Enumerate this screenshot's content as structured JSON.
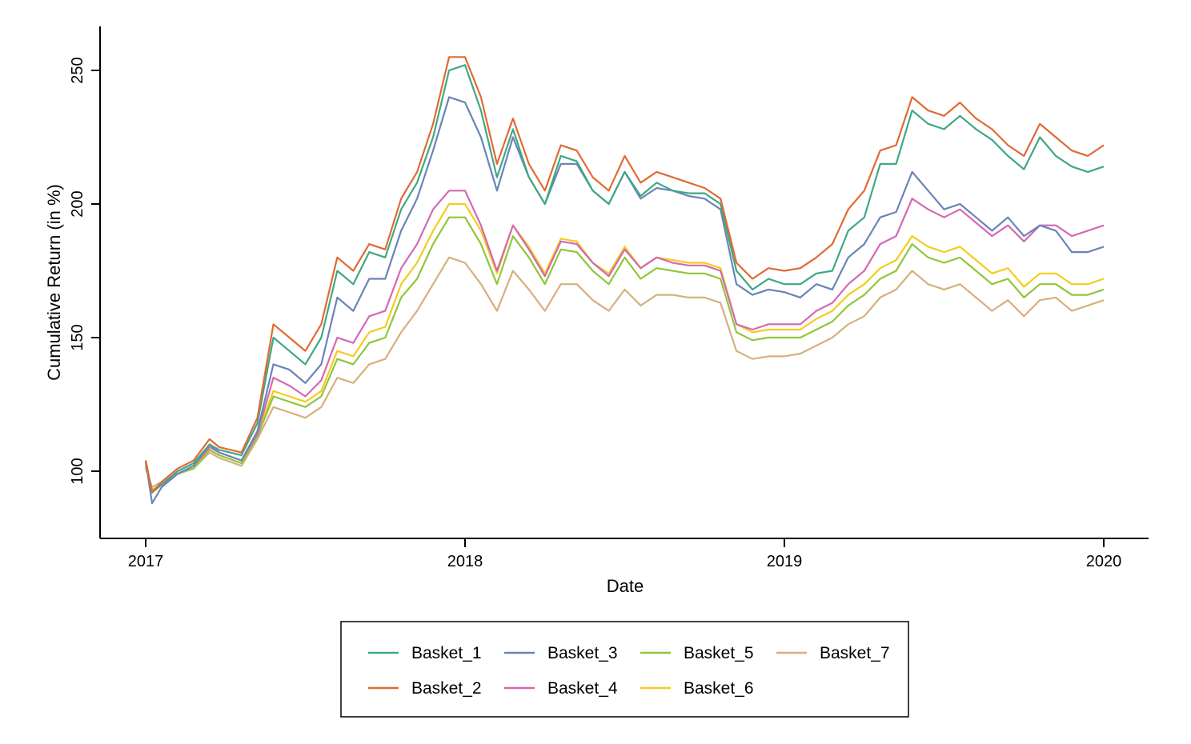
{
  "chart_data": {
    "type": "line",
    "title": "",
    "xlabel": "Date",
    "ylabel": "Cumulative Return (in %)",
    "xlim": [
      2017.0,
      2020.15
    ],
    "ylim": [
      75,
      265
    ],
    "xticks": [
      {
        "value": 2017,
        "label": "2017"
      },
      {
        "value": 2018,
        "label": "2018"
      },
      {
        "value": 2019,
        "label": "2019"
      },
      {
        "value": 2020,
        "label": "2020"
      }
    ],
    "yticks": [
      {
        "value": 100,
        "label": "100"
      },
      {
        "value": 150,
        "label": "150"
      },
      {
        "value": 200,
        "label": "200"
      },
      {
        "value": 250,
        "label": "250"
      }
    ],
    "legend": {
      "position": "bottom",
      "columns": 4,
      "boxed": true
    },
    "x": [
      2017.0,
      2017.02,
      2017.05,
      2017.1,
      2017.15,
      2017.2,
      2017.23,
      2017.3,
      2017.35,
      2017.4,
      2017.45,
      2017.5,
      2017.55,
      2017.6,
      2017.65,
      2017.7,
      2017.75,
      2017.8,
      2017.85,
      2017.9,
      2017.95,
      2018.0,
      2018.05,
      2018.1,
      2018.15,
      2018.2,
      2018.25,
      2018.3,
      2018.35,
      2018.4,
      2018.45,
      2018.5,
      2018.55,
      2018.6,
      2018.65,
      2018.7,
      2018.75,
      2018.8,
      2018.85,
      2018.9,
      2018.95,
      2019.0,
      2019.05,
      2019.1,
      2019.15,
      2019.2,
      2019.25,
      2019.3,
      2019.35,
      2019.4,
      2019.45,
      2019.5,
      2019.55,
      2019.6,
      2019.65,
      2019.7,
      2019.75,
      2019.8,
      2019.85,
      2019.9,
      2019.95,
      2020.0
    ],
    "series": [
      {
        "name": "Basket_1",
        "color": "#3fa883",
        "values": [
          104,
          92,
          95,
          100,
          103,
          110,
          108,
          106,
          118,
          150,
          145,
          140,
          150,
          175,
          170,
          182,
          180,
          198,
          208,
          225,
          250,
          252,
          235,
          210,
          228,
          210,
          200,
          218,
          216,
          205,
          200,
          212,
          203,
          208,
          205,
          204,
          204,
          200,
          175,
          168,
          172,
          170,
          170,
          174,
          175,
          190,
          195,
          215,
          215,
          235,
          230,
          228,
          233,
          228,
          224,
          218,
          213,
          225,
          218,
          214,
          212,
          214
        ]
      },
      {
        "name": "Basket_2",
        "color": "#e06a33",
        "values": [
          104,
          92,
          96,
          101,
          104,
          112,
          109,
          107,
          120,
          155,
          150,
          145,
          155,
          180,
          175,
          185,
          183,
          202,
          212,
          230,
          255,
          255,
          240,
          215,
          232,
          215,
          205,
          222,
          220,
          210,
          205,
          218,
          208,
          212,
          210,
          208,
          206,
          202,
          178,
          172,
          176,
          175,
          176,
          180,
          185,
          198,
          205,
          220,
          222,
          240,
          235,
          233,
          238,
          232,
          228,
          222,
          218,
          230,
          225,
          220,
          218,
          222
        ]
      },
      {
        "name": "Basket_3",
        "color": "#6a84b8",
        "values": [
          104,
          88,
          94,
          99,
          102,
          110,
          107,
          104,
          115,
          140,
          138,
          133,
          140,
          165,
          160,
          172,
          172,
          190,
          202,
          220,
          240,
          238,
          225,
          205,
          225,
          210,
          200,
          215,
          215,
          205,
          200,
          212,
          202,
          206,
          205,
          203,
          202,
          198,
          170,
          166,
          168,
          167,
          165,
          170,
          168,
          180,
          185,
          195,
          197,
          212,
          205,
          198,
          200,
          195,
          190,
          195,
          188,
          192,
          190,
          182,
          182,
          184
        ]
      },
      {
        "name": "Basket_4",
        "color": "#d468b2",
        "values": [
          103,
          92,
          95,
          99,
          102,
          109,
          107,
          104,
          114,
          135,
          132,
          128,
          134,
          150,
          148,
          158,
          160,
          176,
          185,
          198,
          205,
          205,
          192,
          175,
          192,
          183,
          173,
          186,
          185,
          178,
          173,
          183,
          176,
          180,
          178,
          177,
          177,
          175,
          155,
          153,
          155,
          155,
          155,
          160,
          163,
          170,
          175,
          185,
          188,
          202,
          198,
          195,
          198,
          193,
          188,
          192,
          186,
          192,
          192,
          188,
          190,
          192
        ]
      },
      {
        "name": "Basket_5",
        "color": "#8fc63b",
        "values": [
          102,
          93,
          95,
          99,
          101,
          108,
          106,
          103,
          113,
          128,
          126,
          124,
          128,
          142,
          140,
          148,
          150,
          165,
          172,
          185,
          195,
          195,
          185,
          170,
          188,
          180,
          170,
          183,
          182,
          175,
          170,
          180,
          172,
          176,
          175,
          174,
          174,
          172,
          152,
          149,
          150,
          150,
          150,
          153,
          156,
          162,
          166,
          172,
          175,
          185,
          180,
          178,
          180,
          175,
          170,
          172,
          165,
          170,
          170,
          166,
          166,
          168
        ]
      },
      {
        "name": "Basket_6",
        "color": "#f3cc1f",
        "values": [
          102,
          93,
          95,
          99,
          101,
          108,
          106,
          103,
          114,
          130,
          128,
          126,
          130,
          145,
          143,
          152,
          154,
          170,
          178,
          190,
          200,
          200,
          190,
          174,
          192,
          184,
          174,
          187,
          186,
          178,
          174,
          184,
          176,
          180,
          179,
          178,
          178,
          176,
          155,
          152,
          153,
          153,
          153,
          157,
          160,
          166,
          170,
          176,
          179,
          188,
          184,
          182,
          184,
          179,
          174,
          176,
          169,
          174,
          174,
          170,
          170,
          172
        ]
      },
      {
        "name": "Basket_7",
        "color": "#d6b07d",
        "values": [
          101,
          94,
          96,
          99,
          101,
          107,
          105,
          102,
          112,
          124,
          122,
          120,
          124,
          135,
          133,
          140,
          142,
          152,
          160,
          170,
          180,
          178,
          170,
          160,
          175,
          168,
          160,
          170,
          170,
          164,
          160,
          168,
          162,
          166,
          166,
          165,
          165,
          163,
          145,
          142,
          143,
          143,
          144,
          147,
          150,
          155,
          158,
          165,
          168,
          175,
          170,
          168,
          170,
          165,
          160,
          164,
          158,
          164,
          165,
          160,
          162,
          164
        ]
      }
    ]
  }
}
